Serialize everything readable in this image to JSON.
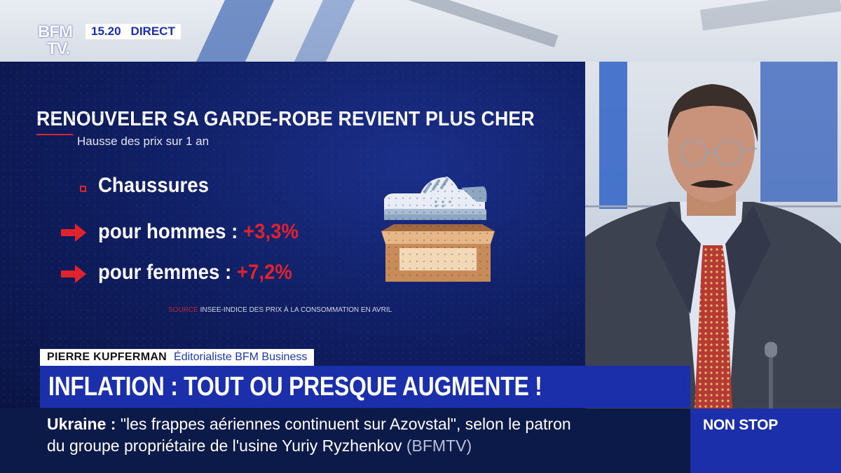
{
  "broadcast": {
    "logo_line1": "BFM",
    "logo_line2": "TV.",
    "time": "15.20",
    "live_label": "DIRECT"
  },
  "graphic": {
    "title": "RENOUVELER SA GARDE-ROBE REVIENT PLUS CHER",
    "subtitle": "Hausse des prix sur 1 an",
    "category": "Chaussures",
    "items": [
      {
        "label": "pour hommes :",
        "value": "+3,3%"
      },
      {
        "label": "pour femmes :",
        "value": "+7,2%"
      }
    ],
    "source_label": "SOURCE",
    "source_text": "INSEE-INDICE DES PRIX À LA CONSOMMATION EN AVRIL",
    "icons": [
      "sneaker-icon",
      "open-box-icon"
    ],
    "accent_color": "#e3222b"
  },
  "guest": {
    "name": "PIERRE KUPFERMAN",
    "role": "Éditorialiste BFM Business"
  },
  "headline": "INFLATION : TOUT OU PRESQUE AUGMENTE !",
  "ticker": {
    "topic": "Ukraine",
    "separator": ":",
    "line1": "\"les frappes aériennes continuent sur Azovstal\", selon le patron",
    "line2": "du groupe propriétaire de l'usine Yuriy Ryzhenkov",
    "source": "(BFMTV)"
  },
  "nonstop_label": "NON STOP",
  "colors": {
    "brand_blue": "#1a2fa9",
    "navy": "#0c1a4a"
  }
}
